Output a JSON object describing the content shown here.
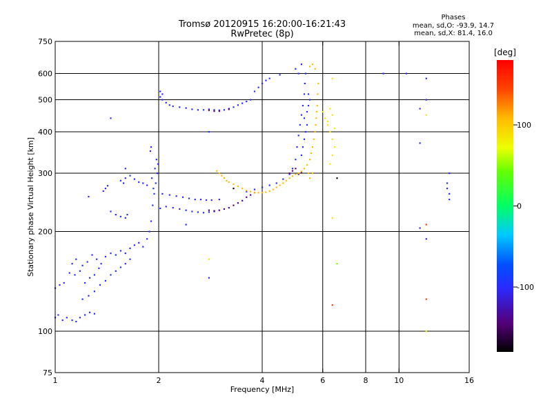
{
  "header": {
    "title_line1": "Tromsø 20120915 16:20:00-16:21:43",
    "title_line2": "RwPretec (8p)",
    "phase_title": "Phases",
    "phase_line1": "mean, sd,O: -93.9, 14.7",
    "phase_line2": "mean, sd,X: 81.4, 16.0"
  },
  "chart_data": {
    "type": "scatter",
    "xlabel": "Frequency [MHz]",
    "ylabel": "Stationary phase Virtual Height [km]",
    "xscale": "log",
    "yscale": "log",
    "xlim": [
      1,
      16
    ],
    "ylim": [
      75,
      750
    ],
    "xticks": [
      1,
      2,
      4,
      6,
      8,
      10,
      16
    ],
    "xtick_labels": [
      "1",
      "2",
      "4",
      "6",
      "8",
      "10",
      "16"
    ],
    "xgrid": [
      2,
      4,
      6,
      8,
      10
    ],
    "yticks": [
      75,
      100,
      200,
      300,
      400,
      500,
      600,
      750
    ],
    "ytick_labels": [
      "75",
      "100",
      "200",
      "300",
      "400",
      "500",
      "600",
      "750"
    ],
    "ygrid": [
      100,
      200,
      300,
      400,
      500,
      600
    ],
    "grid": true,
    "colorbar": {
      "label": "[deg]",
      "range": [
        -180,
        180
      ],
      "ticks": [
        100,
        0,
        -100
      ],
      "tick_labels": [
        "100",
        "0",
        "-100"
      ]
    },
    "series": [
      {
        "phase": -100,
        "points": [
          [
            1.0,
            110
          ],
          [
            1.02,
            112
          ],
          [
            1.05,
            108
          ],
          [
            1.08,
            110
          ],
          [
            1.12,
            108
          ],
          [
            1.15,
            107
          ],
          [
            1.18,
            110
          ],
          [
            1.22,
            112
          ],
          [
            1.26,
            114
          ],
          [
            1.3,
            113
          ],
          [
            1.0,
            135
          ],
          [
            1.03,
            138
          ],
          [
            1.06,
            140
          ],
          [
            1.1,
            150
          ],
          [
            1.14,
            148
          ],
          [
            1.18,
            152
          ],
          [
            1.22,
            140
          ],
          [
            1.26,
            145
          ],
          [
            1.3,
            148
          ],
          [
            1.34,
            155
          ],
          [
            1.12,
            160
          ],
          [
            1.15,
            165
          ],
          [
            1.2,
            158
          ],
          [
            1.24,
            162
          ],
          [
            1.28,
            170
          ],
          [
            1.32,
            165
          ],
          [
            1.36,
            160
          ],
          [
            1.4,
            168
          ],
          [
            1.45,
            172
          ],
          [
            1.5,
            170
          ],
          [
            1.55,
            175
          ],
          [
            1.6,
            172
          ],
          [
            1.65,
            178
          ],
          [
            1.7,
            182
          ],
          [
            1.75,
            185
          ],
          [
            1.8,
            180
          ],
          [
            1.85,
            190
          ],
          [
            1.88,
            200
          ],
          [
            1.9,
            215
          ],
          [
            1.92,
            240
          ],
          [
            1.94,
            260
          ],
          [
            1.96,
            280
          ],
          [
            1.98,
            300
          ],
          [
            1.99,
            320
          ],
          [
            1.91,
            290
          ],
          [
            1.93,
            270
          ],
          [
            1.95,
            310
          ],
          [
            1.97,
            330
          ],
          [
            1.89,
            350
          ],
          [
            1.9,
            360
          ],
          [
            1.2,
            125
          ],
          [
            1.25,
            128
          ],
          [
            1.3,
            132
          ],
          [
            1.35,
            138
          ],
          [
            1.4,
            142
          ],
          [
            1.45,
            148
          ],
          [
            1.5,
            152
          ],
          [
            1.55,
            156
          ],
          [
            1.6,
            160
          ],
          [
            1.65,
            165
          ],
          [
            1.38,
            265
          ],
          [
            1.4,
            270
          ],
          [
            1.42,
            275
          ],
          [
            1.55,
            285
          ],
          [
            1.6,
            290
          ],
          [
            1.65,
            295
          ],
          [
            1.7,
            288
          ],
          [
            1.75,
            282
          ],
          [
            1.8,
            280
          ],
          [
            1.85,
            276
          ],
          [
            1.45,
            230
          ],
          [
            1.5,
            225
          ],
          [
            1.55,
            222
          ],
          [
            1.6,
            220
          ],
          [
            1.62,
            225
          ],
          [
            1.25,
            255
          ],
          [
            1.58,
            280
          ],
          [
            1.6,
            310
          ],
          [
            1.45,
            440
          ],
          [
            2.02,
            235
          ],
          [
            2.1,
            238
          ],
          [
            2.2,
            236
          ],
          [
            2.3,
            234
          ],
          [
            2.4,
            232
          ],
          [
            2.5,
            230
          ],
          [
            2.6,
            229
          ],
          [
            2.7,
            228
          ],
          [
            2.8,
            229
          ],
          [
            2.9,
            230
          ],
          [
            2.05,
            260
          ],
          [
            2.15,
            258
          ],
          [
            2.25,
            256
          ],
          [
            2.35,
            254
          ],
          [
            2.45,
            252
          ],
          [
            2.55,
            250
          ],
          [
            2.65,
            250
          ],
          [
            2.75,
            249
          ],
          [
            2.85,
            249
          ],
          [
            3.0,
            250
          ],
          [
            2.02,
            510
          ],
          [
            2.05,
            500
          ],
          [
            2.1,
            490
          ],
          [
            2.15,
            482
          ],
          [
            2.2,
            478
          ],
          [
            2.3,
            475
          ],
          [
            2.4,
            472
          ],
          [
            2.5,
            468
          ],
          [
            2.6,
            466
          ],
          [
            2.7,
            466
          ],
          [
            2.8,
            468
          ],
          [
            2.9,
            466
          ],
          [
            3.0,
            465
          ],
          [
            3.1,
            466
          ],
          [
            3.2,
            470
          ],
          [
            3.3,
            475
          ],
          [
            3.4,
            482
          ],
          [
            3.5,
            488
          ],
          [
            3.6,
            494
          ],
          [
            3.7,
            500
          ],
          [
            3.8,
            530
          ],
          [
            3.9,
            545
          ],
          [
            4.0,
            560
          ],
          [
            4.1,
            572
          ],
          [
            4.2,
            580
          ],
          [
            4.5,
            595
          ],
          [
            2.02,
            530
          ],
          [
            2.05,
            520
          ],
          [
            3.6,
            264
          ],
          [
            3.8,
            268
          ],
          [
            4.0,
            272
          ],
          [
            4.2,
            276
          ],
          [
            4.4,
            280
          ],
          [
            4.6,
            288
          ],
          [
            4.8,
            298
          ],
          [
            4.9,
            310
          ],
          [
            5.0,
            330
          ],
          [
            5.05,
            360
          ],
          [
            5.1,
            390
          ],
          [
            5.15,
            420
          ],
          [
            5.2,
            450
          ],
          [
            5.25,
            480
          ],
          [
            5.3,
            520
          ],
          [
            5.32,
            560
          ],
          [
            5.35,
            600
          ],
          [
            5.2,
            640
          ],
          [
            5.0,
            620
          ],
          [
            5.1,
            600
          ],
          [
            5.2,
            340
          ],
          [
            5.25,
            360
          ],
          [
            5.3,
            380
          ],
          [
            5.35,
            400
          ],
          [
            5.4,
            420
          ],
          [
            5.3,
            440
          ],
          [
            5.4,
            460
          ],
          [
            5.45,
            480
          ],
          [
            5.5,
            500
          ],
          [
            5.45,
            520
          ],
          [
            2.4,
            210
          ],
          [
            2.8,
            400
          ],
          [
            2.8,
            145
          ],
          [
            9.0,
            600
          ],
          [
            10.5,
            600
          ],
          [
            12.0,
            580
          ],
          [
            12.0,
            500
          ],
          [
            11.5,
            470
          ],
          [
            11.5,
            370
          ],
          [
            14.0,
            300
          ],
          [
            13.8,
            280
          ],
          [
            13.8,
            270
          ],
          [
            14.0,
            260
          ],
          [
            14.0,
            250
          ],
          [
            11.5,
            205
          ],
          [
            12.0,
            190
          ]
        ]
      },
      {
        "phase": -140,
        "points": [
          [
            2.8,
            232
          ],
          [
            2.9,
            231
          ],
          [
            3.0,
            232
          ],
          [
            3.1,
            234
          ],
          [
            3.2,
            236
          ],
          [
            3.3,
            240
          ],
          [
            3.4,
            244
          ],
          [
            3.5,
            248
          ],
          [
            3.6,
            254
          ],
          [
            3.7,
            258
          ],
          [
            3.8,
            262
          ],
          [
            2.8,
            465
          ],
          [
            2.9,
            462
          ],
          [
            3.0,
            462
          ],
          [
            3.2,
            468
          ],
          [
            4.8,
            300
          ],
          [
            4.9,
            305
          ],
          [
            5.0,
            310
          ],
          [
            5.1,
            298
          ],
          [
            5.2,
            302
          ]
        ]
      },
      {
        "phase": 110,
        "points": [
          [
            2.95,
            305
          ],
          [
            3.0,
            300
          ],
          [
            3.05,
            295
          ],
          [
            3.1,
            290
          ],
          [
            3.15,
            285
          ],
          [
            3.2,
            282
          ],
          [
            3.3,
            278
          ],
          [
            3.4,
            274
          ],
          [
            3.5,
            270
          ],
          [
            3.6,
            266
          ],
          [
            3.7,
            264
          ],
          [
            3.8,
            262
          ],
          [
            3.9,
            262
          ],
          [
            4.0,
            262
          ],
          [
            4.1,
            263
          ],
          [
            4.2,
            265
          ],
          [
            4.3,
            268
          ],
          [
            4.4,
            272
          ],
          [
            4.5,
            276
          ],
          [
            4.6,
            280
          ],
          [
            4.7,
            285
          ],
          [
            4.8,
            290
          ],
          [
            4.9,
            294
          ],
          [
            5.0,
            298
          ],
          [
            5.1,
            300
          ],
          [
            5.2,
            304
          ],
          [
            5.3,
            310
          ],
          [
            5.4,
            318
          ],
          [
            5.5,
            330
          ],
          [
            5.55,
            345
          ],
          [
            5.6,
            360
          ],
          [
            5.65,
            380
          ],
          [
            5.7,
            400
          ],
          [
            5.72,
            420
          ],
          [
            5.74,
            440
          ],
          [
            5.76,
            460
          ],
          [
            5.78,
            480
          ],
          [
            5.8,
            520
          ],
          [
            5.82,
            560
          ],
          [
            5.7,
            620
          ],
          [
            5.6,
            640
          ],
          [
            5.5,
            630
          ],
          [
            5.45,
            300
          ],
          [
            5.5,
            290
          ],
          [
            5.6,
            300
          ]
        ]
      },
      {
        "phase": 90,
        "points": [
          [
            6.0,
            460
          ],
          [
            6.1,
            440
          ],
          [
            6.2,
            420
          ],
          [
            6.3,
            400
          ],
          [
            6.4,
            380
          ],
          [
            6.5,
            360
          ],
          [
            6.4,
            340
          ],
          [
            6.3,
            320
          ],
          [
            6.2,
            430
          ],
          [
            6.5,
            410
          ],
          [
            6.4,
            450
          ],
          [
            6.3,
            470
          ],
          [
            2.8,
            165
          ],
          [
            6.4,
            220
          ],
          [
            12.0,
            450
          ],
          [
            6.4,
            580
          ],
          [
            12.0,
            100
          ]
        ]
      },
      {
        "phase": 40,
        "points": [
          [
            6.6,
            160
          ]
        ]
      },
      {
        "phase": 150,
        "points": [
          [
            6.4,
            120
          ],
          [
            12.0,
            125
          ],
          [
            12.0,
            210
          ]
        ]
      },
      {
        "phase": -180,
        "points": [
          [
            3.3,
            270
          ],
          [
            6.6,
            290
          ]
        ]
      }
    ]
  }
}
